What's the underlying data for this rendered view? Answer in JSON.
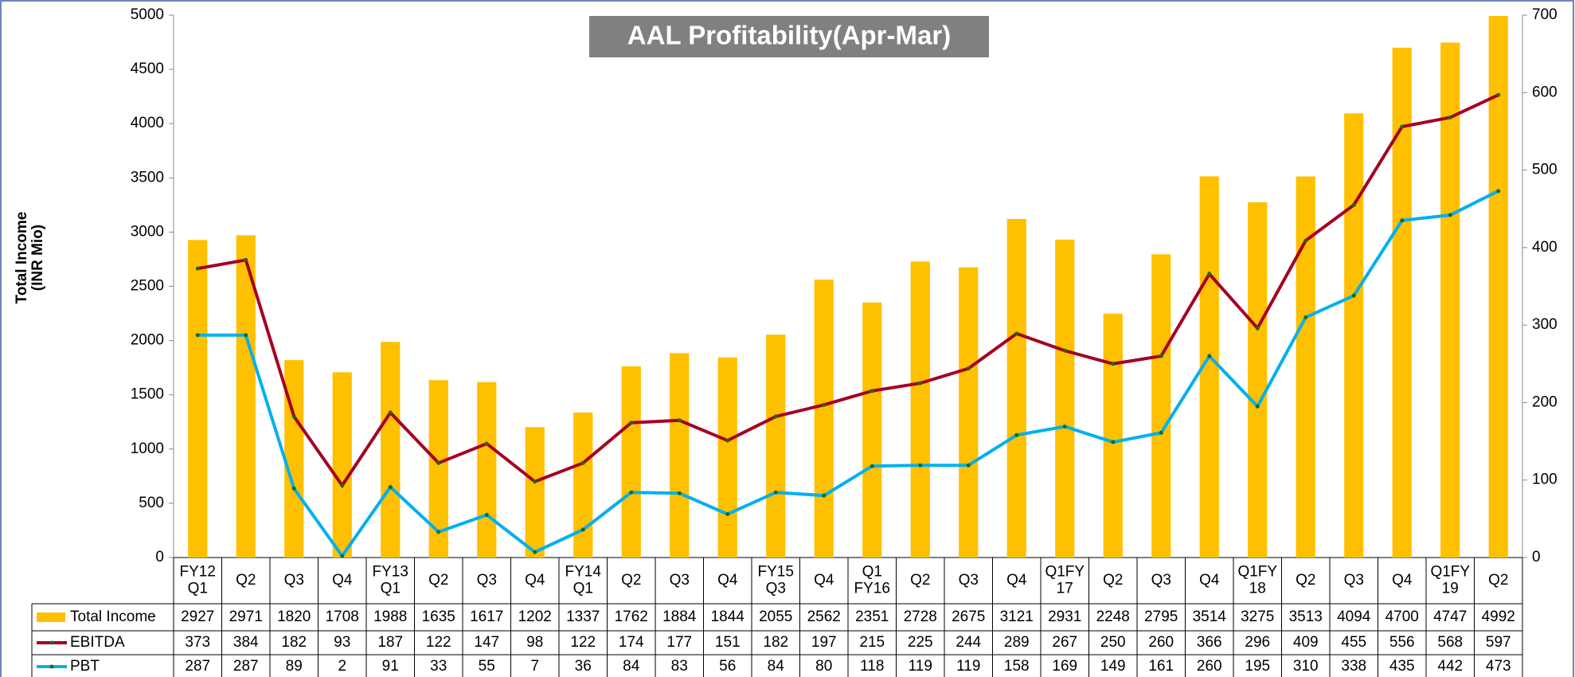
{
  "chart_data": {
    "type": "bar-line",
    "title": "AAL Profitability(Apr-Mar)",
    "y_label": "Total Income\n(INR Mio)",
    "categories": [
      "FY12\nQ1",
      "Q2",
      "Q3",
      "Q4",
      "FY13\nQ1",
      "Q2",
      "Q3",
      "Q4",
      "FY14\nQ1",
      "Q2",
      "Q3",
      "Q4",
      "FY15\nQ3",
      "Q4",
      "Q1\nFY16",
      "Q2",
      "Q3",
      "Q4",
      "Q1FY\n17",
      "Q2",
      "Q3",
      "Q4",
      "Q1FY\n18",
      "Q2",
      "Q3",
      "Q4",
      "Q1FY\n19",
      "Q2"
    ],
    "series": [
      {
        "name": "Total Income",
        "color": "#FFC000",
        "kind": "bar",
        "values": [
          2927,
          2971,
          1820,
          1708,
          1988,
          1635,
          1617,
          1202,
          1337,
          1762,
          1884,
          1844,
          2055,
          2562,
          2351,
          2728,
          2675,
          3121,
          2931,
          2248,
          2795,
          3514,
          3275,
          3513,
          4094,
          4700,
          4747,
          4992
        ]
      },
      {
        "name": "EBITDA",
        "color": "#A50021",
        "kind": "line",
        "axis": "y2",
        "values": [
          373,
          384,
          182,
          93,
          187,
          122,
          147,
          98,
          122,
          174,
          177,
          151,
          182,
          197,
          215,
          225,
          244,
          289,
          267,
          250,
          260,
          366,
          296,
          409,
          455,
          556,
          568,
          597
        ]
      },
      {
        "name": "PBT",
        "color": "#00B0F0",
        "kind": "line",
        "axis": "y2",
        "values": [
          287,
          287,
          89,
          2,
          91,
          33,
          55,
          7,
          36,
          84,
          83,
          56,
          84,
          80,
          118,
          119,
          119,
          158,
          169,
          149,
          161,
          260,
          195,
          310,
          338,
          435,
          442,
          473
        ]
      }
    ],
    "ylim": [
      0,
      5000
    ],
    "yticks": [
      0,
      500,
      1000,
      1500,
      2000,
      2500,
      3000,
      3500,
      4000,
      4500,
      5000
    ],
    "y2lim": [
      0,
      700
    ],
    "y2ticks": [
      0,
      100,
      200,
      300,
      400,
      500,
      600,
      700
    ],
    "data_table": true
  }
}
